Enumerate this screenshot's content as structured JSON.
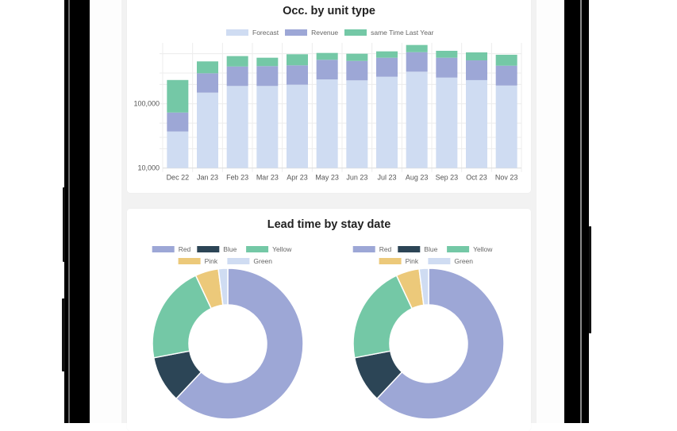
{
  "colors": {
    "forecast": "#cfdcf2",
    "revenue": "#9da7d6",
    "last_year": "#74c8a6",
    "red": "#9da7d6",
    "blue": "#2c4556",
    "yellow": "#74c8a6",
    "pink": "#ecc97a",
    "green": "#cfdcf2"
  },
  "chart_data": [
    {
      "type": "bar",
      "stacked": true,
      "title": "Occ. by unit type",
      "xlabel": "",
      "ylabel": "",
      "y_scale": "log",
      "ylim": [
        10000,
        830000
      ],
      "y_ticks": [
        "10,000",
        "100,000"
      ],
      "grid": true,
      "legend_position": "top",
      "categories": [
        "Dec 22",
        "Jan 23",
        "Feb 23",
        "Mar 23",
        "Apr 23",
        "May 23",
        "Jun 23",
        "Jul 23",
        "Aug 23",
        "Sep 23",
        "Oct 23",
        "Nov 23"
      ],
      "series": [
        {
          "name": "Forecast",
          "color_key": "forecast",
          "values": [
            37000,
            149000,
            189000,
            189000,
            198000,
            239000,
            231000,
            263000,
            315000,
            255000,
            233000,
            192000
          ]
        },
        {
          "name": "Revenue",
          "color_key": "revenue",
          "values": [
            36000,
            149000,
            191000,
            196000,
            198000,
            244000,
            233000,
            257000,
            319000,
            265000,
            240000,
            199000
          ]
        },
        {
          "name": "same Time Last Year",
          "color_key": "last_year",
          "values": [
            161000,
            158000,
            171000,
            135000,
            193000,
            134000,
            136000,
            133000,
            186000,
            146000,
            156000,
            187000
          ]
        }
      ]
    },
    {
      "type": "pie",
      "variant": "doughnut",
      "title": "Lead time by stay date",
      "legend_position": "top",
      "labels": [
        "Red",
        "Blue",
        "Yellow",
        "Pink",
        "Green"
      ],
      "color_keys": [
        "red",
        "blue",
        "yellow",
        "pink",
        "green"
      ],
      "values": [
        62,
        10,
        21,
        5,
        2
      ]
    },
    {
      "type": "pie",
      "variant": "doughnut",
      "title": "Lead time by stay date",
      "legend_position": "top",
      "labels": [
        "Red",
        "Blue",
        "Yellow",
        "Pink",
        "Green"
      ],
      "color_keys": [
        "red",
        "blue",
        "yellow",
        "pink",
        "green"
      ],
      "values": [
        62,
        10,
        21,
        5,
        2
      ]
    }
  ]
}
